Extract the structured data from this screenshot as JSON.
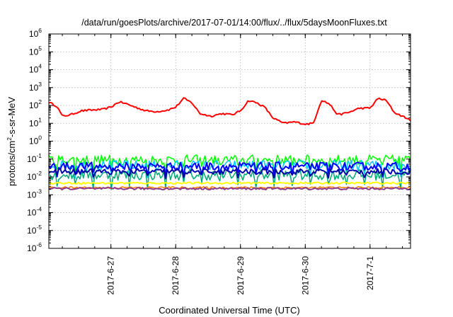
{
  "chart_data": {
    "type": "line",
    "title": "/data/run/goesPlots/archive/2017-07-01/14:00/flux/../flux/5daysMoonFluxes.txt",
    "xlabel": "Coordinated Universal Time (UTC)",
    "ylabel": "protons/cm²-s-sr-MeV",
    "ylabel_parts": {
      "pre": "protons/cm",
      "sup": "2",
      "post": "-s-sr-MeV"
    },
    "yscale": "log",
    "ylim_exponents": [
      -6,
      6
    ],
    "y_tick_labels": [
      {
        "base": "10",
        "exp": "-6"
      },
      {
        "base": "10",
        "exp": "-5"
      },
      {
        "base": "10",
        "exp": "-4"
      },
      {
        "base": "10",
        "exp": "-3"
      },
      {
        "base": "10",
        "exp": "-2"
      },
      {
        "base": "10",
        "exp": "-1"
      },
      {
        "base": "10",
        "exp": "0"
      },
      {
        "base": "10",
        "exp": "1"
      },
      {
        "base": "10",
        "exp": "2"
      },
      {
        "base": "10",
        "exp": "3"
      },
      {
        "base": "10",
        "exp": "4"
      },
      {
        "base": "10",
        "exp": "5"
      },
      {
        "base": "10",
        "exp": "6"
      }
    ],
    "xlim": [
      "2017-06-26T01:00",
      "2017-07-01T15:00"
    ],
    "x_ticks": [
      "2017-06-27",
      "2017-06-28",
      "2017-06-29",
      "2017-06-30",
      "2017-07-01"
    ],
    "x_tick_labels": [
      "2017-6-27",
      "2017-6-28",
      "2017-6-29",
      "2017-6-30",
      "2017-7-1"
    ],
    "grid": true,
    "series": [
      {
        "color": "#ff0000",
        "width": 2,
        "jitter": 0.05,
        "x": [
          "2017-06-26T01:00",
          "2017-06-26T04:00",
          "2017-06-26T06:00",
          "2017-06-26T09:00",
          "2017-06-26T13:00",
          "2017-06-26T17:00",
          "2017-06-26T21:00",
          "2017-06-27T00:00",
          "2017-06-27T03:00",
          "2017-06-27T06:00",
          "2017-06-27T09:00",
          "2017-06-27T13:00",
          "2017-06-27T17:00",
          "2017-06-27T21:00",
          "2017-06-28T00:00",
          "2017-06-28T03:00",
          "2017-06-28T06:00",
          "2017-06-28T09:00",
          "2017-06-28T13:00",
          "2017-06-28T17:00",
          "2017-06-28T21:00",
          "2017-06-29T00:00",
          "2017-06-29T03:00",
          "2017-06-29T06:00",
          "2017-06-29T09:00",
          "2017-06-29T12:00",
          "2017-06-29T16:00",
          "2017-06-29T20:00",
          "2017-06-30T00:00",
          "2017-06-30T03:00",
          "2017-06-30T06:00",
          "2017-06-30T09:00",
          "2017-06-30T12:00",
          "2017-06-30T16:00",
          "2017-06-30T20:00",
          "2017-07-01T00:00",
          "2017-07-01T03:00",
          "2017-07-01T06:00",
          "2017-07-01T09:00",
          "2017-07-01T12:00",
          "2017-07-01T15:00"
        ],
        "y": [
          150,
          90,
          25,
          30,
          50,
          55,
          60,
          80,
          160,
          120,
          80,
          50,
          45,
          55,
          80,
          250,
          140,
          35,
          25,
          35,
          30,
          50,
          190,
          140,
          80,
          20,
          10,
          12,
          9,
          10,
          200,
          120,
          30,
          40,
          70,
          70,
          250,
          190,
          40,
          25,
          15
        ]
      },
      {
        "color": "#00ff00",
        "width": 1.5,
        "jitter": 0.28,
        "x": [
          "2017-06-26T01:00",
          "2017-07-01T15:00"
        ],
        "y": [
          0.09,
          0.09
        ]
      },
      {
        "color": "#00c8ff",
        "width": 1.5,
        "jitter": 0.28,
        "x": [
          "2017-06-26T01:00",
          "2017-07-01T15:00"
        ],
        "y": [
          0.045,
          0.045
        ]
      },
      {
        "color": "#00aa77",
        "width": 1.5,
        "jitter": 0.3,
        "x": [
          "2017-06-26T01:00",
          "2017-07-01T15:00"
        ],
        "y": [
          0.013,
          0.013
        ]
      },
      {
        "color": "#0000ff",
        "width": 2,
        "jitter": 0.22,
        "x": [
          "2017-06-26T01:00",
          "2017-07-01T15:00"
        ],
        "y": [
          0.04,
          0.04
        ]
      },
      {
        "color": "#0000aa",
        "width": 2,
        "jitter": 0.15,
        "x": [
          "2017-06-26T01:00",
          "2017-07-01T15:00"
        ],
        "y": [
          0.02,
          0.02
        ]
      },
      {
        "color": "#ffff00",
        "width": 2,
        "jitter": 0.05,
        "x": [
          "2017-06-26T01:00",
          "2017-07-01T15:00"
        ],
        "y": [
          0.0045,
          0.0045
        ]
      },
      {
        "color": "#ff7f00",
        "width": 1.5,
        "jitter": 0.06,
        "x": [
          "2017-06-26T01:00",
          "2017-07-01T15:00"
        ],
        "y": [
          0.0025,
          0.0025
        ]
      },
      {
        "color": "#8b3a8b",
        "width": 2,
        "jitter": 0.06,
        "x": [
          "2017-06-26T01:00",
          "2017-07-01T15:00"
        ],
        "y": [
          0.0022,
          0.0022
        ]
      }
    ]
  }
}
